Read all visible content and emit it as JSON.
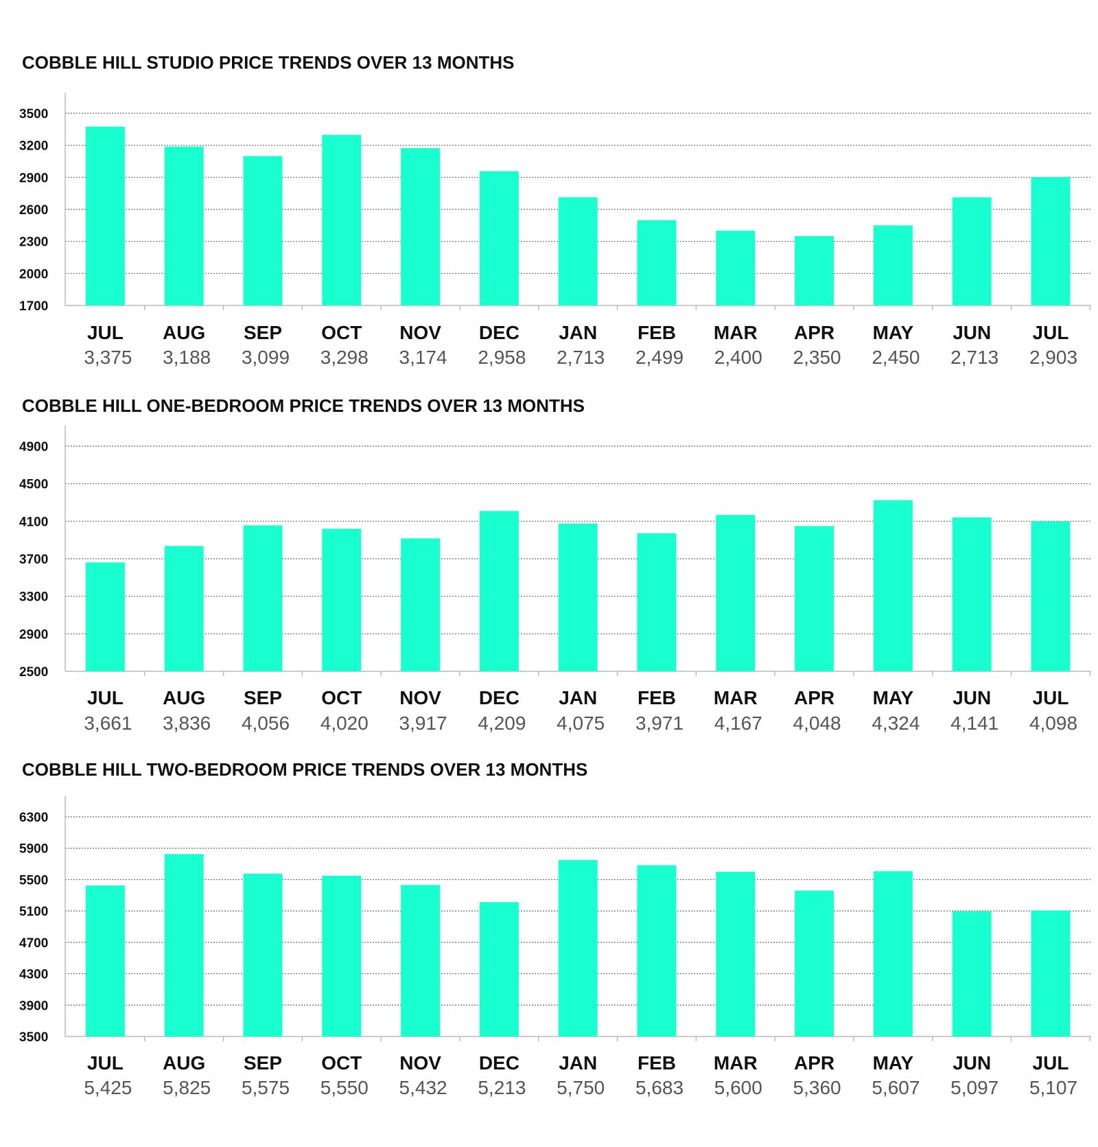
{
  "colors": {
    "bar": "#1affcf",
    "grid": "#666666",
    "axis": "#bbbbbb",
    "value_text": "#555555"
  },
  "chart_data": [
    {
      "type": "bar",
      "title": "COBBLE HILL STUDIO PRICE TRENDS OVER 13 MONTHS",
      "categories": [
        "JUL",
        "AUG",
        "SEP",
        "OCT",
        "NOV",
        "DEC",
        "JAN",
        "FEB",
        "MAR",
        "APR",
        "MAY",
        "JUN",
        "JUL"
      ],
      "values": [
        3375,
        3188,
        3099,
        3298,
        3174,
        2958,
        2713,
        2499,
        2400,
        2350,
        2450,
        2713,
        2903
      ],
      "value_labels": [
        "3,375",
        "3,188",
        "3,099",
        "3,298",
        "3,174",
        "2,958",
        "2,713",
        "2,499",
        "2,400",
        "2,350",
        "2,450",
        "2,713",
        "2,903"
      ],
      "yticks": [
        1700,
        2000,
        2300,
        2600,
        2900,
        3200,
        3500
      ],
      "ylim": [
        1700,
        3500
      ],
      "grid": true
    },
    {
      "type": "bar",
      "title": "COBBLE HILL ONE-BEDROOM PRICE TRENDS OVER 13 MONTHS",
      "categories": [
        "JUL",
        "AUG",
        "SEP",
        "OCT",
        "NOV",
        "DEC",
        "JAN",
        "FEB",
        "MAR",
        "APR",
        "MAY",
        "JUN",
        "JUL"
      ],
      "values": [
        3661,
        3836,
        4056,
        4020,
        3917,
        4209,
        4075,
        3971,
        4167,
        4048,
        4324,
        4141,
        4098
      ],
      "value_labels": [
        "3,661",
        "3,836",
        "4,056",
        "4,020",
        "3,917",
        "4,209",
        "4,075",
        "3,971",
        "4,167",
        "4,048",
        "4,324",
        "4,141",
        "4,098"
      ],
      "yticks": [
        2500,
        2900,
        3300,
        3700,
        4100,
        4500,
        4900
      ],
      "ylim": [
        2500,
        4900
      ],
      "grid": true
    },
    {
      "type": "bar",
      "title": "COBBLE HILL TWO-BEDROOM PRICE TRENDS OVER 13 MONTHS",
      "categories": [
        "JUL",
        "AUG",
        "SEP",
        "OCT",
        "NOV",
        "DEC",
        "JAN",
        "FEB",
        "MAR",
        "APR",
        "MAY",
        "JUN",
        "JUL"
      ],
      "values": [
        5425,
        5825,
        5575,
        5550,
        5432,
        5213,
        5750,
        5683,
        5600,
        5360,
        5607,
        5097,
        5107
      ],
      "value_labels": [
        "5,425",
        "5,825",
        "5,575",
        "5,550",
        "5,432",
        "5,213",
        "5,750",
        "5,683",
        "5,600",
        "5,360",
        "5,607",
        "5,097",
        "5,107"
      ],
      "yticks": [
        3500,
        3900,
        4300,
        4700,
        5100,
        5500,
        5900,
        6300
      ],
      "ylim": [
        3500,
        6300
      ],
      "grid": true
    }
  ]
}
